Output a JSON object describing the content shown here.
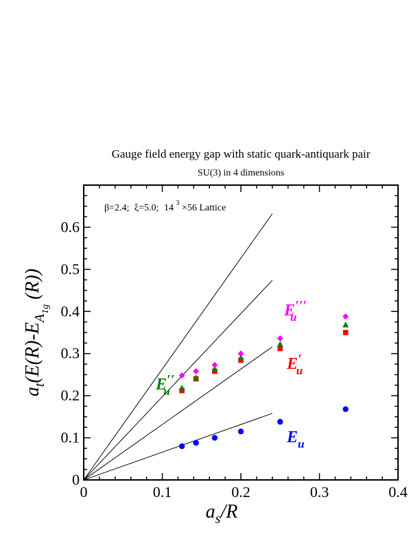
{
  "chart_data": {
    "type": "scatter",
    "title": "Gauge field energy gap with static quark-antiquark pair",
    "subtitle": "SU(3) in 4 dimensions",
    "annotation": {
      "beta": "β=2.4;",
      "xi": "ξ=5.0;",
      "lattice_base": "14",
      "lattice_exp": "3",
      "lattice_rest": "×56 Lattice"
    },
    "xlabel": {
      "main": "a",
      "sub": "s",
      "rest": "/R"
    },
    "ylabel": {
      "pre": "a",
      "sub": "t",
      "mid": "(E(R)-E",
      "sub2": "A",
      "sub3": "1g",
      "post": " (R))"
    },
    "xlim": [
      0,
      0.4
    ],
    "ylim": [
      0,
      0.7
    ],
    "xticks": [
      {
        "v": 0,
        "label": "0"
      },
      {
        "v": 0.1,
        "label": "0.1"
      },
      {
        "v": 0.2,
        "label": "0.2"
      },
      {
        "v": 0.3,
        "label": "0.3"
      },
      {
        "v": 0.4,
        "label": "0.4"
      }
    ],
    "yticks": [
      {
        "v": 0,
        "label": "0"
      },
      {
        "v": 0.1,
        "label": "0.1"
      },
      {
        "v": 0.2,
        "label": "0.2"
      },
      {
        "v": 0.3,
        "label": "0.3"
      },
      {
        "v": 0.4,
        "label": "0.4"
      },
      {
        "v": 0.5,
        "label": "0.5"
      },
      {
        "v": 0.6,
        "label": "0.6"
      }
    ],
    "x": [
      0.125,
      0.1429,
      0.1667,
      0.2,
      0.25,
      0.3333
    ],
    "series": [
      {
        "name": "E_u",
        "label_main": "E",
        "label_sub": "u",
        "label_prime": "",
        "color": "#0000ff",
        "marker": "circle",
        "values": [
          0.08,
          0.088,
          0.1,
          0.115,
          0.138,
          0.168
        ]
      },
      {
        "name": "E'_u",
        "label_main": "E",
        "label_sub": "u",
        "label_prime": "′",
        "color": "#ff0000",
        "marker": "square",
        "values": [
          0.212,
          0.24,
          0.258,
          0.284,
          0.312,
          0.35
        ]
      },
      {
        "name": "E''_u",
        "label_main": "E",
        "label_sub": "u",
        "label_prime": "′′",
        "color": "#008000",
        "marker": "triangle",
        "values": [
          0.218,
          0.242,
          0.263,
          0.29,
          0.322,
          0.368
        ]
      },
      {
        "name": "E'''_u",
        "label_main": "E",
        "label_sub": "u",
        "label_prime": "′′′",
        "color": "#ff00ff",
        "marker": "diamond",
        "values": [
          0.248,
          0.258,
          0.273,
          0.3,
          0.336,
          0.388
        ]
      }
    ],
    "reference_lines": [
      {
        "from": [
          0,
          0
        ],
        "to": [
          0.24,
          0.158
        ]
      },
      {
        "from": [
          0,
          0
        ],
        "to": [
          0.24,
          0.316
        ]
      },
      {
        "from": [
          0,
          0
        ],
        "to": [
          0.24,
          0.474
        ]
      },
      {
        "from": [
          0,
          0
        ],
        "to": [
          0.24,
          0.632
        ]
      }
    ],
    "grid": false
  }
}
